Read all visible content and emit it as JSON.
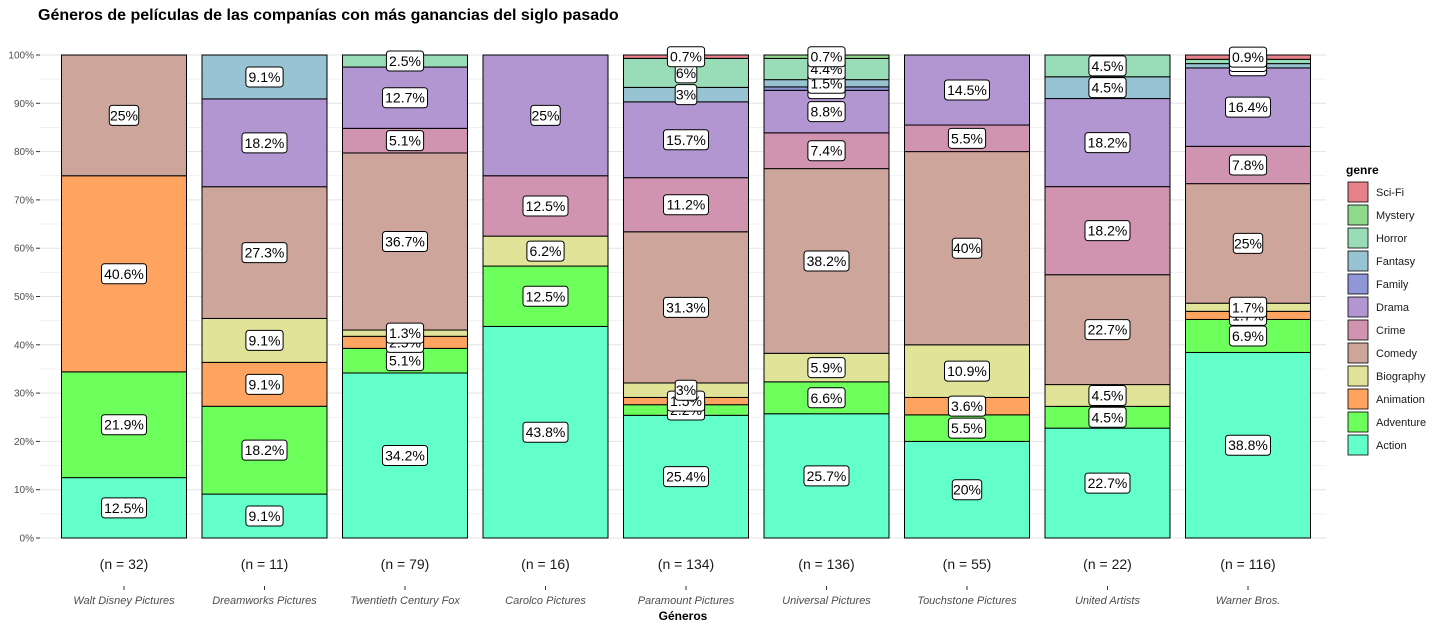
{
  "chart_data": {
    "type": "bar",
    "stacked": true,
    "title": "Géneros de películas de las companías con más ganancias del siglo pasado",
    "xlabel": "Géneros",
    "ylabel": "",
    "ylim": [
      0,
      1
    ],
    "y_ticks": [
      "0%",
      "10%",
      "20%",
      "30%",
      "40%",
      "50%",
      "60%",
      "70%",
      "80%",
      "90%",
      "100%"
    ],
    "legend_title": "genre",
    "legend_position": "right",
    "categories": [
      "Walt Disney Pictures",
      "Dreamworks Pictures",
      "Twentieth Century Fox",
      "Carolco Pictures",
      "Paramount Pictures",
      "Universal Pictures",
      "Touchstone Pictures",
      "United Artists",
      "Warner Bros."
    ],
    "n_labels": [
      "(n = 32)",
      "(n = 11)",
      "(n = 79)",
      "(n = 16)",
      "(n = 134)",
      "(n = 136)",
      "(n = 55)",
      "(n = 22)",
      "(n = 116)"
    ],
    "legend": [
      {
        "name": "Sci-Fi",
        "color": "#E8828A"
      },
      {
        "name": "Mystery",
        "color": "#8FD98C"
      },
      {
        "name": "Horror",
        "color": "#99DDB8"
      },
      {
        "name": "Fantasy",
        "color": "#98C3D2"
      },
      {
        "name": "Family",
        "color": "#8F97D6"
      },
      {
        "name": "Drama",
        "color": "#B296D2"
      },
      {
        "name": "Crime",
        "color": "#D094B0"
      },
      {
        "name": "Comedy",
        "color": "#CDA59A"
      },
      {
        "name": "Biography",
        "color": "#E0E398"
      },
      {
        "name": "Animation",
        "color": "#FFA460"
      },
      {
        "name": "Adventure",
        "color": "#6DFF5C"
      },
      {
        "name": "Action",
        "color": "#62FFCA"
      }
    ],
    "stack_order_bottom_to_top": [
      "Action",
      "Adventure",
      "Animation",
      "Biography",
      "Comedy",
      "Crime",
      "Drama",
      "Family",
      "Fantasy",
      "Horror",
      "Mystery",
      "Sci-Fi"
    ],
    "bars": [
      {
        "company": "Walt Disney Pictures",
        "segments": [
          {
            "genre": "Action",
            "value": 12.5,
            "label": "12.5%"
          },
          {
            "genre": "Adventure",
            "value": 21.9,
            "label": "21.9%"
          },
          {
            "genre": "Animation",
            "value": 40.6,
            "label": "40.6%"
          },
          {
            "genre": "Comedy",
            "value": 25.0,
            "label": "25%"
          }
        ]
      },
      {
        "company": "Dreamworks Pictures",
        "segments": [
          {
            "genre": "Action",
            "value": 9.1,
            "label": "9.1%"
          },
          {
            "genre": "Adventure",
            "value": 18.2,
            "label": "18.2%"
          },
          {
            "genre": "Animation",
            "value": 9.1,
            "label": "9.1%"
          },
          {
            "genre": "Biography",
            "value": 9.1,
            "label": "9.1%"
          },
          {
            "genre": "Comedy",
            "value": 27.3,
            "label": "27.3%"
          },
          {
            "genre": "Drama",
            "value": 18.2,
            "label": "18.2%"
          },
          {
            "genre": "Fantasy",
            "value": 9.1,
            "label": "9.1%"
          }
        ]
      },
      {
        "company": "Twentieth Century Fox",
        "segments": [
          {
            "genre": "Action",
            "value": 34.2,
            "label": "34.2%"
          },
          {
            "genre": "Adventure",
            "value": 5.1,
            "label": "5.1%"
          },
          {
            "genre": "Animation",
            "value": 2.5,
            "label": "2.5%"
          },
          {
            "genre": "Biography",
            "value": 1.3,
            "label": "1.3%"
          },
          {
            "genre": "Comedy",
            "value": 36.7,
            "label": "36.7%"
          },
          {
            "genre": "Crime",
            "value": 5.1,
            "label": "5.1%"
          },
          {
            "genre": "Drama",
            "value": 12.7,
            "label": "12.7%"
          },
          {
            "genre": "Horror",
            "value": 2.5,
            "label": "2.5%"
          }
        ]
      },
      {
        "company": "Carolco Pictures",
        "segments": [
          {
            "genre": "Action",
            "value": 43.8,
            "label": "43.8%"
          },
          {
            "genre": "Adventure",
            "value": 12.5,
            "label": "12.5%"
          },
          {
            "genre": "Biography",
            "value": 6.2,
            "label": "6.2%"
          },
          {
            "genre": "Crime",
            "value": 12.5,
            "label": "12.5%"
          },
          {
            "genre": "Drama",
            "value": 25.0,
            "label": "25%"
          }
        ]
      },
      {
        "company": "Paramount Pictures",
        "segments": [
          {
            "genre": "Action",
            "value": 25.4,
            "label": "25.4%"
          },
          {
            "genre": "Adventure",
            "value": 2.2,
            "label": "2.2%"
          },
          {
            "genre": "Animation",
            "value": 1.5,
            "label": "1.5%"
          },
          {
            "genre": "Biography",
            "value": 3.0,
            "label": "3%"
          },
          {
            "genre": "Comedy",
            "value": 31.3,
            "label": "31.3%"
          },
          {
            "genre": "Crime",
            "value": 11.2,
            "label": "11.2%"
          },
          {
            "genre": "Drama",
            "value": 15.7,
            "label": "15.7%"
          },
          {
            "genre": "Fantasy",
            "value": 3.0,
            "label": "3%"
          },
          {
            "genre": "Horror",
            "value": 6.0,
            "label": "6%"
          },
          {
            "genre": "Sci-Fi",
            "value": 0.7,
            "label": "0.7%"
          }
        ]
      },
      {
        "company": "Universal Pictures",
        "segments": [
          {
            "genre": "Action",
            "value": 25.7,
            "label": "25.7%"
          },
          {
            "genre": "Adventure",
            "value": 6.6,
            "label": "6.6%"
          },
          {
            "genre": "Biography",
            "value": 5.9,
            "label": "5.9%"
          },
          {
            "genre": "Comedy",
            "value": 38.2,
            "label": "38.2%"
          },
          {
            "genre": "Crime",
            "value": 7.4,
            "label": "7.4%"
          },
          {
            "genre": "Drama",
            "value": 8.8,
            "label": "8.8%"
          },
          {
            "genre": "Family",
            "value": 0.7,
            "label": "0.7%"
          },
          {
            "genre": "Fantasy",
            "value": 1.5,
            "label": "1.5%"
          },
          {
            "genre": "Horror",
            "value": 4.4,
            "label": "4.4%"
          },
          {
            "genre": "Mystery",
            "value": 0.7,
            "label": "0.7%"
          }
        ]
      },
      {
        "company": "Touchstone Pictures",
        "segments": [
          {
            "genre": "Action",
            "value": 20.0,
            "label": "20%"
          },
          {
            "genre": "Adventure",
            "value": 5.5,
            "label": "5.5%"
          },
          {
            "genre": "Animation",
            "value": 3.6,
            "label": "3.6%"
          },
          {
            "genre": "Biography",
            "value": 10.9,
            "label": "10.9%"
          },
          {
            "genre": "Comedy",
            "value": 40.0,
            "label": "40%"
          },
          {
            "genre": "Crime",
            "value": 5.5,
            "label": "5.5%"
          },
          {
            "genre": "Drama",
            "value": 14.5,
            "label": "14.5%"
          }
        ]
      },
      {
        "company": "United Artists",
        "segments": [
          {
            "genre": "Action",
            "value": 22.7,
            "label": "22.7%"
          },
          {
            "genre": "Adventure",
            "value": 4.5,
            "label": "4.5%"
          },
          {
            "genre": "Biography",
            "value": 4.5,
            "label": "4.5%"
          },
          {
            "genre": "Comedy",
            "value": 22.7,
            "label": "22.7%"
          },
          {
            "genre": "Crime",
            "value": 18.2,
            "label": "18.2%"
          },
          {
            "genre": "Drama",
            "value": 18.2,
            "label": "18.2%"
          },
          {
            "genre": "Fantasy",
            "value": 4.5,
            "label": "4.5%"
          },
          {
            "genre": "Horror",
            "value": 4.5,
            "label": "4.5%"
          }
        ]
      },
      {
        "company": "Warner Bros.",
        "segments": [
          {
            "genre": "Action",
            "value": 38.8,
            "label": "38.8%"
          },
          {
            "genre": "Adventure",
            "value": 6.9,
            "label": "6.9%"
          },
          {
            "genre": "Animation",
            "value": 1.7,
            "label": "1.7%"
          },
          {
            "genre": "Biography",
            "value": 1.7,
            "label": "1.7%"
          },
          {
            "genre": "Comedy",
            "value": 25.0,
            "label": "25%"
          },
          {
            "genre": "Crime",
            "value": 7.8,
            "label": "7.8%"
          },
          {
            "genre": "Drama",
            "value": 16.4,
            "label": "16.4%"
          },
          {
            "genre": "Fantasy",
            "value": 0.9,
            "label": "0.9%"
          },
          {
            "genre": "Horror",
            "value": 0.9,
            "label": "0.9%"
          },
          {
            "genre": "Sci-Fi",
            "value": 0.9,
            "label": "0.9%"
          }
        ]
      }
    ]
  }
}
